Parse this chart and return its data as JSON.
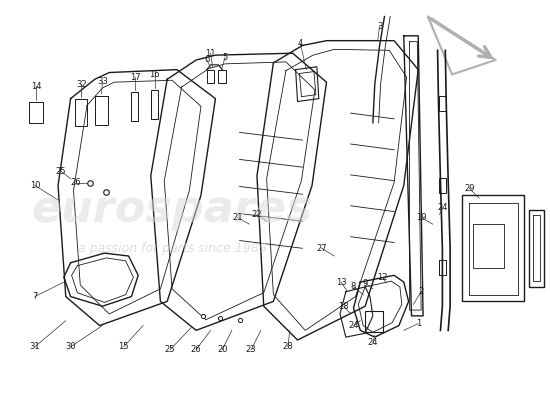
{
  "bg_color": "#ffffff",
  "line_color": "#1a1a1a",
  "wm_color1": "#d8d8d8",
  "wm_color2": "#c8c8c8",
  "arrow_color": "#b0b0b0",
  "label_fontsize": 6.0,
  "lw_main": 1.0,
  "lw_thin": 0.6,
  "lw_leader": 0.5
}
